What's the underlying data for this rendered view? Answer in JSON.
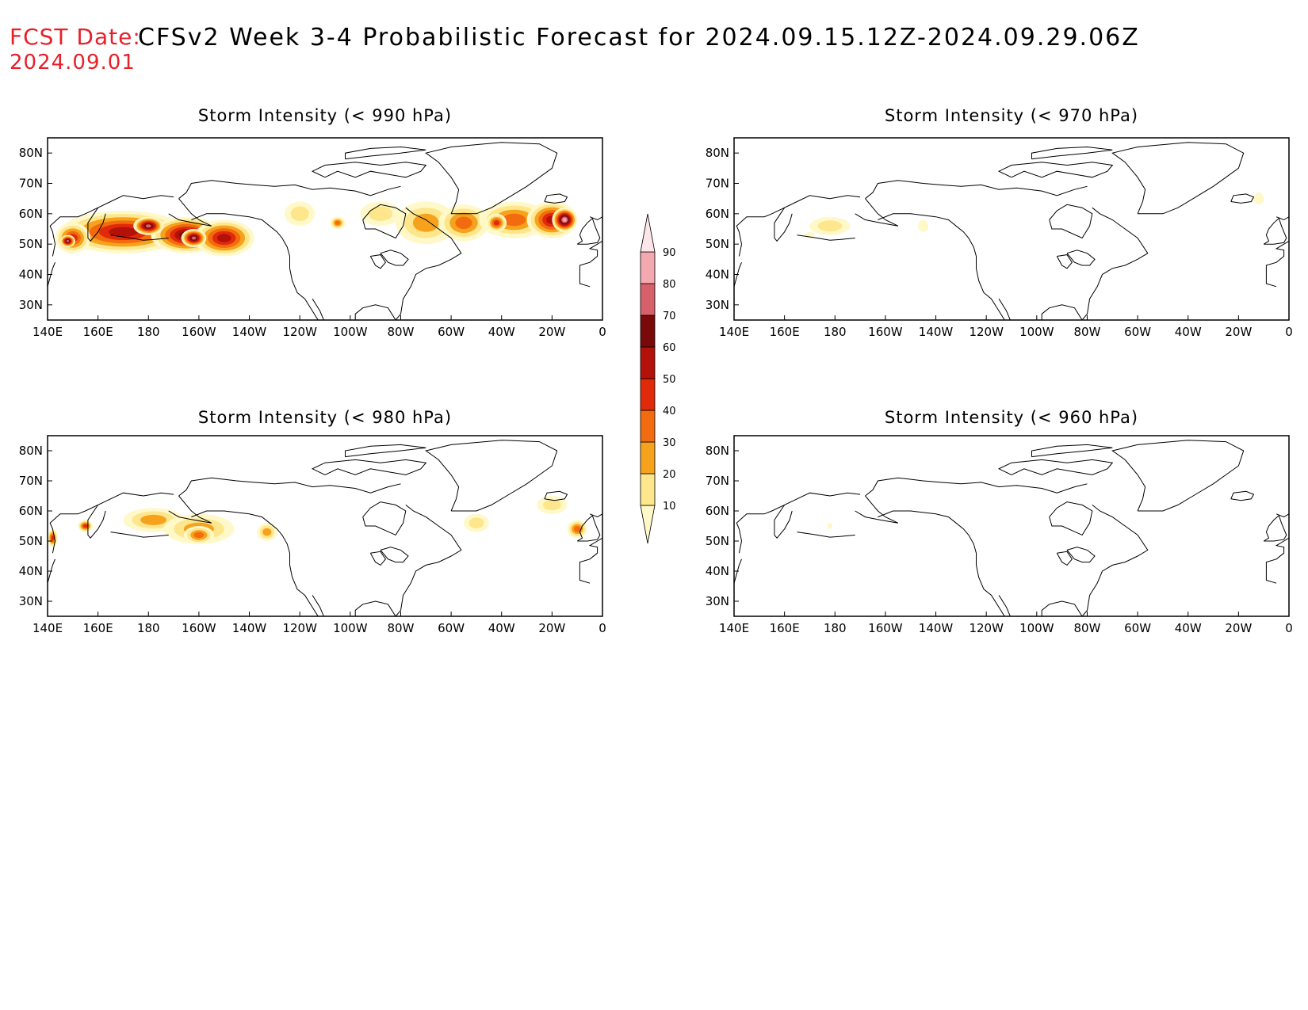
{
  "header": {
    "fcst_label": "FCST Date:",
    "fcst_date": "2024.09.01",
    "title": "CFSv2 Week 3-4 Probabilistic Forecast for 2024.09.15.12Z-2024.09.29.06Z"
  },
  "axes": {
    "lon_labels": [
      "140E",
      "160E",
      "180",
      "160W",
      "140W",
      "120W",
      "100W",
      "80W",
      "60W",
      "40W",
      "20W",
      "0"
    ],
    "lat_labels": [
      "80N",
      "70N",
      "60N",
      "50N",
      "40N",
      "30N"
    ],
    "lon_range_deg_east": [
      140,
      360
    ],
    "lat_range": [
      25,
      85
    ]
  },
  "colorbar": {
    "levels": [
      10,
      20,
      30,
      40,
      50,
      60,
      70,
      80,
      90
    ],
    "labels": [
      "10",
      "20",
      "30",
      "40",
      "50",
      "60",
      "70",
      "80",
      "90"
    ],
    "colors": [
      "#fff8c8",
      "#fde68c",
      "#f7a21c",
      "#f26b0e",
      "#e02a0a",
      "#b3110a",
      "#7a0a0a",
      "#d8606a",
      "#f4a8b0",
      "#fde6ea"
    ]
  },
  "panels": [
    {
      "id": "p990",
      "title": "Storm Intensity (< 990 hPa)",
      "blobs": [
        {
          "lon": 170,
          "lat": 54,
          "rlon": 25,
          "rlat": 7,
          "level": 6
        },
        {
          "lon": 195,
          "lat": 53,
          "rlon": 14,
          "rlat": 6,
          "level": 7
        },
        {
          "lon": 210,
          "lat": 52,
          "rlon": 12,
          "rlat": 6,
          "level": 6
        },
        {
          "lon": 150,
          "lat": 52,
          "rlon": 7,
          "rlat": 5,
          "level": 5
        },
        {
          "lon": 180,
          "lat": 56,
          "rlon": 6,
          "rlat": 3,
          "level": 8
        },
        {
          "lon": 198,
          "lat": 52,
          "rlon": 5,
          "rlat": 3,
          "level": 8
        },
        {
          "lon": 148,
          "lat": 51,
          "rlon": 3,
          "rlat": 2,
          "level": 8
        },
        {
          "lon": 240,
          "lat": 60,
          "rlon": 6,
          "rlat": 4,
          "level": 2
        },
        {
          "lon": 255,
          "lat": 57,
          "rlon": 3,
          "rlat": 2,
          "level": 4
        },
        {
          "lon": 272,
          "lat": 60,
          "rlon": 8,
          "rlat": 4,
          "level": 2
        },
        {
          "lon": 290,
          "lat": 57,
          "rlon": 12,
          "rlat": 7,
          "level": 3
        },
        {
          "lon": 305,
          "lat": 57,
          "rlon": 10,
          "rlat": 6,
          "level": 4
        },
        {
          "lon": 325,
          "lat": 58,
          "rlon": 14,
          "rlat": 6,
          "level": 4
        },
        {
          "lon": 340,
          "lat": 58,
          "rlon": 10,
          "rlat": 6,
          "level": 6
        },
        {
          "lon": 345,
          "lat": 58,
          "rlon": 5,
          "rlat": 4,
          "level": 9
        },
        {
          "lon": 318,
          "lat": 57,
          "rlon": 4,
          "rlat": 3,
          "level": 5
        }
      ]
    },
    {
      "id": "p970",
      "title": "Storm Intensity (< 970 hPa)",
      "blobs": [
        {
          "lon": 178,
          "lat": 56,
          "rlon": 8,
          "rlat": 3,
          "level": 2
        },
        {
          "lon": 170,
          "lat": 53,
          "rlon": 2,
          "rlat": 1,
          "level": 1
        },
        {
          "lon": 215,
          "lat": 56,
          "rlon": 2,
          "rlat": 2,
          "level": 1
        },
        {
          "lon": 348,
          "lat": 65,
          "rlon": 2,
          "rlat": 2,
          "level": 1
        }
      ]
    },
    {
      "id": "p980",
      "title": "Storm Intensity (< 980 hPa)",
      "blobs": [
        {
          "lon": 182,
          "lat": 57,
          "rlon": 12,
          "rlat": 4,
          "level": 3
        },
        {
          "lon": 200,
          "lat": 54,
          "rlon": 14,
          "rlat": 5,
          "level": 3
        },
        {
          "lon": 200,
          "lat": 52,
          "rlon": 6,
          "rlat": 3,
          "level": 4
        },
        {
          "lon": 155,
          "lat": 55,
          "rlon": 3,
          "rlat": 2,
          "level": 5
        },
        {
          "lon": 142,
          "lat": 51,
          "rlon": 2,
          "rlat": 3,
          "level": 5
        },
        {
          "lon": 227,
          "lat": 53,
          "rlon": 4,
          "rlat": 3,
          "level": 3
        },
        {
          "lon": 310,
          "lat": 56,
          "rlon": 5,
          "rlat": 3,
          "level": 2
        },
        {
          "lon": 340,
          "lat": 62,
          "rlon": 6,
          "rlat": 3,
          "level": 2
        },
        {
          "lon": 350,
          "lat": 54,
          "rlon": 4,
          "rlat": 3,
          "level": 4
        }
      ]
    },
    {
      "id": "p960",
      "title": "Storm Intensity (< 960 hPa)",
      "blobs": [
        {
          "lon": 178,
          "lat": 55,
          "rlon": 1,
          "rlat": 1,
          "level": 1
        }
      ]
    }
  ]
}
